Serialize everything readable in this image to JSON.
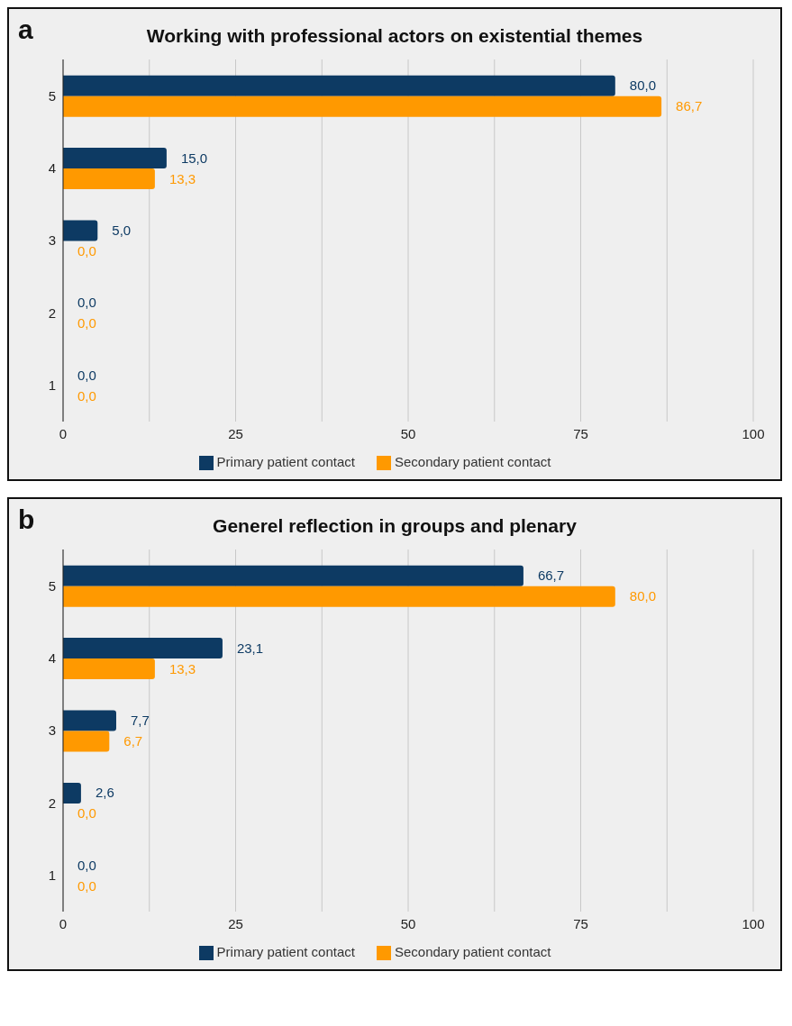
{
  "chart_data": [
    {
      "type": "bar",
      "orientation": "horizontal",
      "title": "Working with professional actors on existential themes",
      "annotations": [
        "a"
      ],
      "categories": [
        "5",
        "4",
        "3",
        "2",
        "1"
      ],
      "series": [
        {
          "name": "Primary patient contact",
          "color": "#0d3a63",
          "values": [
            80.0,
            15.0,
            5.0,
            0.0,
            0.0
          ],
          "value_labels": [
            "80,0",
            "15,0",
            "5,0",
            "0,0",
            "0,0"
          ]
        },
        {
          "name": "Secondary patient contact",
          "color": "#ff9900",
          "values": [
            86.7,
            13.3,
            0.0,
            0.0,
            0.0
          ],
          "value_labels": [
            "86,7",
            "13,3",
            "0,0",
            "0,0",
            "0,0"
          ]
        }
      ],
      "xlim": [
        0,
        100
      ],
      "xticks": [
        0,
        {
          "value": 12.5,
          "label": null
        },
        25,
        {
          "value": 37.5,
          "label": null
        },
        50,
        {
          "value": 62.5,
          "label": null
        },
        75,
        {
          "value": 87.5,
          "label": null
        },
        100
      ],
      "grid": "x",
      "legend": "bottom"
    },
    {
      "type": "bar",
      "orientation": "horizontal",
      "title": "Generel reflection in groups and plenary",
      "annotations": [
        "b"
      ],
      "categories": [
        "5",
        "4",
        "3",
        "2",
        "1"
      ],
      "series": [
        {
          "name": "Primary patient contact",
          "color": "#0d3a63",
          "values": [
            66.7,
            23.1,
            7.7,
            2.6,
            0.0
          ],
          "value_labels": [
            "66,7",
            "23,1",
            "7,7",
            "2,6",
            "0,0"
          ]
        },
        {
          "name": "Secondary patient contact",
          "color": "#ff9900",
          "values": [
            80.0,
            13.3,
            6.7,
            0.0,
            0.0
          ],
          "value_labels": [
            "80,0",
            "13,3",
            "6,7",
            "0,0",
            "0,0"
          ]
        }
      ],
      "xlim": [
        0,
        100
      ],
      "xticks": [
        0,
        {
          "value": 12.5,
          "label": null
        },
        25,
        {
          "value": 37.5,
          "label": null
        },
        50,
        {
          "value": 62.5,
          "label": null
        },
        75,
        {
          "value": 87.5,
          "label": null
        },
        100
      ],
      "grid": "x",
      "legend": "bottom"
    }
  ]
}
